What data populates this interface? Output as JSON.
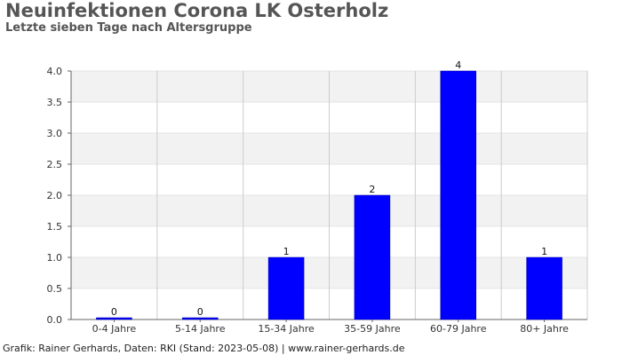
{
  "title": "Neuinfektionen Corona LK Osterholz",
  "subtitle": "Letzte sieben Tage nach Altersgruppe",
  "footer": "Grafik: Rainer Gerhards, Daten: RKI (Stand: 2023-05-08) | www.rainer-gerhards.de",
  "colors": {
    "bar": "#0000ff",
    "band": "#f2f2f2",
    "grid": "#cccccc"
  },
  "chart_data": {
    "type": "bar",
    "categories": [
      "0-4 Jahre",
      "5-14 Jahre",
      "15-34 Jahre",
      "35-59 Jahre",
      "60-79 Jahre",
      "80+ Jahre"
    ],
    "values": [
      0,
      0,
      1,
      2,
      4,
      1
    ],
    "data_labels": [
      "0",
      "0",
      "1",
      "2",
      "4",
      "1"
    ],
    "yticks": [
      "0.0",
      "0.5",
      "1.0",
      "1.5",
      "2.0",
      "2.5",
      "3.0",
      "3.5",
      "4.0"
    ],
    "ylim": [
      0,
      4
    ],
    "grid": true,
    "xlabel": "",
    "ylabel": ""
  }
}
